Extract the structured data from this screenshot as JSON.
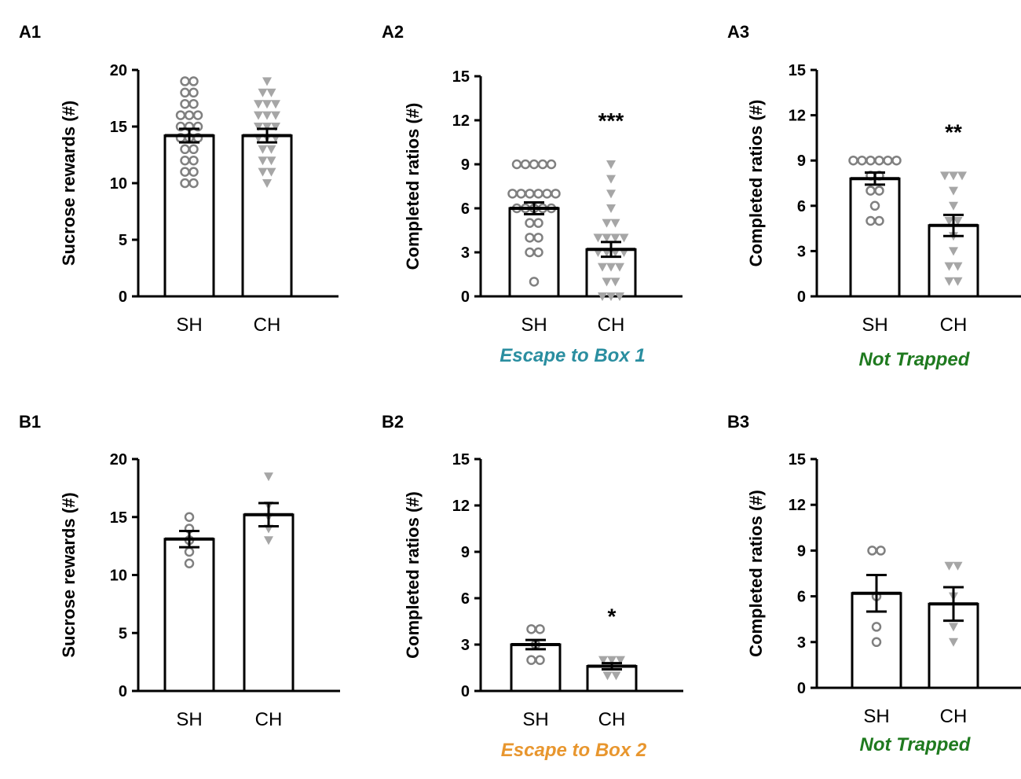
{
  "figure": {
    "colors": {
      "axis": "#000000",
      "bar_fill": "#ffffff",
      "sh_marker": "#808080",
      "ch_marker": "#a6a6a6"
    }
  },
  "chart_data": [
    {
      "id": "A1",
      "label": "A1",
      "type": "bar",
      "ylabel": "Sucrose rewards (#)",
      "ylim": [
        0,
        20
      ],
      "yticks": [
        0,
        5,
        10,
        15,
        20
      ],
      "categories": [
        "SH",
        "CH"
      ],
      "values": [
        14.2,
        14.2
      ],
      "sem": [
        0.6,
        0.6
      ],
      "points": [
        [
          19,
          19,
          18,
          18,
          17,
          17,
          16,
          16,
          16,
          15,
          15,
          15,
          14,
          14,
          14,
          13,
          13,
          12,
          12,
          11,
          11,
          10,
          10
        ],
        [
          19,
          18,
          18,
          17,
          17,
          17,
          16,
          16,
          16,
          15,
          15,
          15,
          14,
          14,
          14,
          13,
          13,
          12,
          12,
          11,
          11,
          10
        ]
      ],
      "significance": "",
      "subtitle": "",
      "subtitle_color": ""
    },
    {
      "id": "A2",
      "label": "A2",
      "type": "bar",
      "ylabel": "Completed ratios (#)",
      "ylim": [
        0,
        15
      ],
      "yticks": [
        0,
        3,
        6,
        9,
        12,
        15
      ],
      "categories": [
        "SH",
        "CH"
      ],
      "values": [
        6.0,
        3.2
      ],
      "sem": [
        0.4,
        0.5
      ],
      "points": [
        [
          9,
          9,
          9,
          9,
          9,
          7,
          7,
          7,
          7,
          7,
          7,
          6,
          6,
          6,
          6,
          6,
          5,
          5,
          4,
          4,
          3,
          3,
          1
        ],
        [
          9,
          8,
          7,
          6,
          5,
          5,
          4,
          4,
          4,
          4,
          3,
          3,
          3,
          3,
          2,
          2,
          2,
          1,
          1,
          0,
          0,
          0
        ]
      ],
      "significance": "***",
      "subtitle": "Escape to Box 1",
      "subtitle_color": "#2a8ea0"
    },
    {
      "id": "A3",
      "label": "A3",
      "type": "bar",
      "ylabel": "Completed ratios (#)",
      "ylim": [
        0,
        15
      ],
      "yticks": [
        0,
        3,
        6,
        9,
        12,
        15
      ],
      "categories": [
        "SH",
        "CH"
      ],
      "values": [
        7.8,
        4.7
      ],
      "sem": [
        0.4,
        0.7
      ],
      "points": [
        [
          9,
          9,
          9,
          9,
          9,
          9,
          8,
          8,
          7,
          7,
          6,
          5,
          5
        ],
        [
          8,
          8,
          8,
          7,
          6,
          5,
          5,
          4,
          3,
          2,
          2,
          1,
          1
        ]
      ],
      "significance": "**",
      "subtitle": "Not Trapped",
      "subtitle_color": "#1f7a1f"
    },
    {
      "id": "B1",
      "label": "B1",
      "type": "bar",
      "ylabel": "Sucrose rewards (#)",
      "ylim": [
        0,
        20
      ],
      "yticks": [
        0,
        5,
        10,
        15,
        20
      ],
      "categories": [
        "SH",
        "CH"
      ],
      "values": [
        13.1,
        15.2
      ],
      "sem": [
        0.7,
        1.0
      ],
      "points": [
        [
          15,
          14,
          13,
          12,
          11
        ],
        [
          18.5,
          16,
          15,
          14,
          13
        ]
      ],
      "significance": "",
      "subtitle": "",
      "subtitle_color": ""
    },
    {
      "id": "B2",
      "label": "B2",
      "type": "bar",
      "ylabel": "Completed ratios (#)",
      "ylim": [
        0,
        15
      ],
      "yticks": [
        0,
        3,
        6,
        9,
        12,
        15
      ],
      "categories": [
        "SH",
        "CH"
      ],
      "values": [
        3.0,
        1.6
      ],
      "sem": [
        0.3,
        0.2
      ],
      "points": [
        [
          4,
          4,
          3,
          2,
          2
        ],
        [
          2,
          2,
          2,
          1,
          1
        ]
      ],
      "significance": "*",
      "subtitle": "Escape to Box 2",
      "subtitle_color": "#e8962e"
    },
    {
      "id": "B3",
      "label": "B3",
      "type": "bar",
      "ylabel": "Completed ratios (#)",
      "ylim": [
        0,
        15
      ],
      "yticks": [
        0,
        3,
        6,
        9,
        12,
        15
      ],
      "categories": [
        "SH",
        "CH"
      ],
      "values": [
        6.2,
        5.5
      ],
      "sem": [
        1.2,
        1.1
      ],
      "points": [
        [
          9,
          9,
          6,
          4,
          3
        ],
        [
          8,
          8,
          6,
          4,
          3
        ]
      ],
      "significance": "",
      "subtitle": "Not Trapped",
      "subtitle_color": "#1f7a1f"
    }
  ]
}
